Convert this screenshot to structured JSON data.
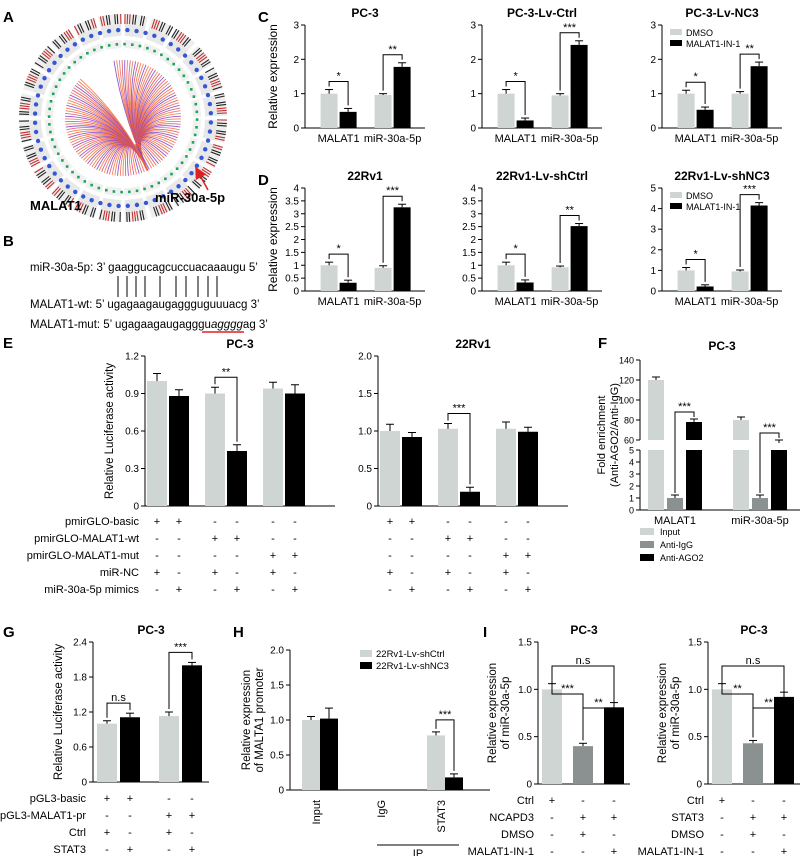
{
  "colors": {
    "light": "#cfd5d2",
    "dark": "#000000",
    "gray": "#8a9190",
    "red": "#e02020"
  },
  "panel_labels": {
    "A": "A",
    "B": "B",
    "C": "C",
    "D": "D",
    "E": "E",
    "F": "F",
    "G": "G",
    "H": "H",
    "I": "I"
  },
  "panel_a": {
    "label_malat1": "MALAT1",
    "label_mir": "miR-30a-5p"
  },
  "panel_b": {
    "line1": "miR-30a-5p: 3’ gaaggucagcuccuacaaaugu 5’",
    "line2": "MALAT1-wt: 5’ ugagaagaugaggguguuuacg 3’",
    "line3_prefix": "MALAT1-mut: 5’ ugagaagaugagggu",
    "line3_mut": "agggg",
    "line3_suffix": "ag 3’"
  },
  "common": {
    "ylabel_rel": "Relative expression",
    "legend_dmso": "DMSO",
    "legend_malat_in": "MALAT1-IN-1",
    "cat_malat1": "MALAT1",
    "cat_mir": "miR-30a-5p",
    "plus": "+",
    "minus": "-"
  },
  "chart_data": [
    {
      "id": "C1",
      "type": "bar",
      "title": "PC-3",
      "ylabel": "Relative expression",
      "ylim": [
        0,
        3
      ],
      "yticks": [
        "0",
        "1",
        "2",
        "3"
      ],
      "categories": [
        "MALAT1",
        "miR-30a-5p"
      ],
      "series": [
        {
          "name": "DMSO",
          "values": [
            1.0,
            0.96
          ],
          "errors": [
            0.12,
            0.04
          ]
        },
        {
          "name": "MALAT1-IN-1",
          "values": [
            0.47,
            1.78
          ],
          "errors": [
            0.1,
            0.12
          ]
        }
      ],
      "significance": [
        "*",
        "**"
      ]
    },
    {
      "id": "C2",
      "type": "bar",
      "title": "PC-3-Lv-Ctrl",
      "ylim": [
        0,
        3
      ],
      "yticks": [
        "0",
        "1",
        "2",
        "3"
      ],
      "categories": [
        "MALAT1",
        "miR-30a-5p"
      ],
      "series": [
        {
          "name": "DMSO",
          "values": [
            1.0,
            0.95
          ],
          "errors": [
            0.12,
            0.05
          ]
        },
        {
          "name": "MALAT1-IN-1",
          "values": [
            0.22,
            2.42
          ],
          "errors": [
            0.07,
            0.12
          ]
        }
      ],
      "significance": [
        "*",
        "***"
      ]
    },
    {
      "id": "C3",
      "type": "bar",
      "title": "PC-3-Lv-NC3",
      "ylim": [
        0,
        3
      ],
      "yticks": [
        "0",
        "1",
        "2",
        "3"
      ],
      "categories": [
        "MALAT1",
        "miR-30a-5p"
      ],
      "series": [
        {
          "name": "DMSO",
          "values": [
            1.0,
            1.0
          ],
          "errors": [
            0.1,
            0.06
          ]
        },
        {
          "name": "MALAT1-IN-1",
          "values": [
            0.53,
            1.8
          ],
          "errors": [
            0.08,
            0.12
          ]
        }
      ],
      "significance": [
        "*",
        "**"
      ],
      "legend": [
        "DMSO",
        "MALAT1-IN-1"
      ]
    },
    {
      "id": "D1",
      "type": "bar",
      "title": "22Rv1",
      "ylabel": "Relative expression",
      "ylim": [
        0,
        4
      ],
      "yticks": [
        "0",
        "0.5",
        "1",
        "1.5",
        "2",
        "2.5",
        "3",
        "3.5",
        "4"
      ],
      "categories": [
        "MALAT1",
        "miR-30a-5p"
      ],
      "series": [
        {
          "name": "DMSO",
          "values": [
            1.0,
            0.9
          ],
          "errors": [
            0.12,
            0.08
          ]
        },
        {
          "name": "MALAT1-IN-1",
          "values": [
            0.32,
            3.25
          ],
          "errors": [
            0.1,
            0.12
          ]
        }
      ],
      "significance": [
        "*",
        "***"
      ]
    },
    {
      "id": "D2",
      "type": "bar",
      "title": "22Rv1-Lv-shCtrl",
      "ylim": [
        0,
        4
      ],
      "yticks": [
        "0",
        "0.5",
        "1",
        "1.5",
        "2",
        "2.5",
        "3",
        "3.5",
        "4"
      ],
      "categories": [
        "MALAT1",
        "miR-30a-5p"
      ],
      "series": [
        {
          "name": "DMSO",
          "values": [
            1.0,
            0.92
          ],
          "errors": [
            0.12,
            0.05
          ]
        },
        {
          "name": "MALAT1-IN-1",
          "values": [
            0.33,
            2.52
          ],
          "errors": [
            0.1,
            0.1
          ]
        }
      ],
      "significance": [
        "*",
        "**"
      ]
    },
    {
      "id": "D3",
      "type": "bar",
      "title": "22Rv1-Lv-shNC3",
      "ylim": [
        0,
        5
      ],
      "yticks": [
        "0",
        "1",
        "2",
        "3",
        "4",
        "5"
      ],
      "categories": [
        "MALAT1",
        "miR-30a-5p"
      ],
      "series": [
        {
          "name": "DMSO",
          "values": [
            1.0,
            0.95
          ],
          "errors": [
            0.14,
            0.07
          ]
        },
        {
          "name": "MALAT1-IN-1",
          "values": [
            0.22,
            4.15
          ],
          "errors": [
            0.08,
            0.14
          ]
        }
      ],
      "significance": [
        "*",
        "***"
      ],
      "legend": [
        "DMSO",
        "MALAT1-IN-1"
      ]
    },
    {
      "id": "E1",
      "type": "bar",
      "title": "PC-3",
      "ylabel": "Relative Luciferase activity",
      "ylim": [
        0,
        1.2
      ],
      "yticks": [
        "0",
        "0.3",
        "0.6",
        "0.9",
        "1.2"
      ],
      "values": [
        1.0,
        0.88,
        0.9,
        0.44,
        0.94,
        0.9
      ],
      "errors": [
        0.06,
        0.05,
        0.05,
        0.05,
        0.05,
        0.07
      ],
      "colors": [
        "light",
        "dark",
        "light",
        "dark",
        "light",
        "dark"
      ],
      "significance": {
        "pair": [
          2,
          3
        ],
        "label": "**"
      },
      "rows": [
        {
          "label": "pmirGLO-basic",
          "signs": [
            "+",
            "+",
            "-",
            "-",
            "-",
            "-"
          ]
        },
        {
          "label": "pmirGLO-MALAT1-wt",
          "signs": [
            "-",
            "-",
            "+",
            "+",
            "-",
            "-"
          ]
        },
        {
          "label": "pmirGLO-MALAT1-mut",
          "signs": [
            "-",
            "-",
            "-",
            "-",
            "+",
            "+"
          ]
        },
        {
          "label": "miR-NC",
          "signs": [
            "+",
            "-",
            "+",
            "-",
            "+",
            "-"
          ]
        },
        {
          "label": "miR-30a-5p mimics",
          "signs": [
            "-",
            "+",
            "-",
            "+",
            "-",
            "+"
          ]
        }
      ]
    },
    {
      "id": "E2",
      "type": "bar",
      "title": "22Rv1",
      "ylim": [
        0,
        2.0
      ],
      "yticks": [
        "0",
        "0.5",
        "1.0",
        "1.5",
        "2.0"
      ],
      "values": [
        1.0,
        0.92,
        1.03,
        0.19,
        1.03,
        0.99
      ],
      "errors": [
        0.09,
        0.06,
        0.07,
        0.06,
        0.09,
        0.06
      ],
      "colors": [
        "light",
        "dark",
        "light",
        "dark",
        "light",
        "dark"
      ],
      "significance": {
        "pair": [
          2,
          3
        ],
        "label": "***"
      },
      "rows": [
        {
          "signs": [
            "+",
            "+",
            "-",
            "-",
            "-",
            "-"
          ]
        },
        {
          "signs": [
            "-",
            "-",
            "+",
            "+",
            "-",
            "-"
          ]
        },
        {
          "signs": [
            "-",
            "-",
            "-",
            "-",
            "+",
            "+"
          ]
        },
        {
          "signs": [
            "+",
            "-",
            "+",
            "-",
            "+",
            "-"
          ]
        },
        {
          "signs": [
            "-",
            "+",
            "-",
            "+",
            "-",
            "+"
          ]
        }
      ]
    },
    {
      "id": "F",
      "type": "bar",
      "title": "PC-3",
      "ylabel": "Fold enrichment\n(Anti-AGO2/Anti-IgG)",
      "yticks": [
        "0",
        "1",
        "2",
        "3",
        "4",
        "5",
        "60",
        "80",
        "100",
        "120",
        "140"
      ],
      "categories": [
        "MALAT1",
        "miR-30a-5p"
      ],
      "series": [
        {
          "name": "Input",
          "values": [
            120,
            80
          ]
        },
        {
          "name": "Anti-IgG",
          "values": [
            1,
            1
          ]
        },
        {
          "name": "Anti-AGO2",
          "values": [
            78,
            57
          ]
        }
      ],
      "significance": [
        "***",
        "***"
      ],
      "legend": [
        "Input",
        "Anti-IgG",
        "Anti-AGO2"
      ]
    },
    {
      "id": "G",
      "type": "bar",
      "title": "PC-3",
      "ylabel": "Relative Luciferase activity",
      "ylim": [
        0,
        2.4
      ],
      "yticks": [
        "0",
        "0.6",
        "1.2",
        "1.8",
        "2.4"
      ],
      "values": [
        1.0,
        1.11,
        1.13,
        2.0
      ],
      "errors": [
        0.05,
        0.07,
        0.07,
        0.05
      ],
      "colors": [
        "light",
        "dark",
        "light",
        "dark"
      ],
      "significance": [
        {
          "pair": [
            0,
            1
          ],
          "label": "n.s"
        },
        {
          "pair": [
            2,
            3
          ],
          "label": "***"
        }
      ],
      "rows": [
        {
          "label": "pGL3-basic",
          "signs": [
            "+",
            "+",
            "-",
            "-"
          ]
        },
        {
          "label": "pGL3-MALAT1-pr",
          "signs": [
            "-",
            "-",
            "+",
            "+"
          ]
        },
        {
          "label": "Ctrl",
          "signs": [
            "+",
            "-",
            "+",
            "-"
          ]
        },
        {
          "label": "STAT3",
          "signs": [
            "-",
            "+",
            "-",
            "+"
          ]
        }
      ]
    },
    {
      "id": "H",
      "type": "bar",
      "ylabel": "Relative expression\nof MALTA1 promoter",
      "ylim": [
        0,
        2.0
      ],
      "yticks": [
        "0",
        "0.5",
        "1.0",
        "1.5",
        "2.0"
      ],
      "categories": [
        "Input",
        "IgG",
        "STAT3"
      ],
      "group_label": "IP",
      "series": [
        {
          "name": "22Rv1-Lv-shCtrl",
          "values": [
            1.0,
            0,
            0.78
          ],
          "errors": [
            0.05,
            0,
            0.05
          ]
        },
        {
          "name": "22Rv1-Lv-shNC3",
          "values": [
            1.02,
            0,
            0.18
          ],
          "errors": [
            0.15,
            0,
            0.05
          ]
        }
      ],
      "significance": {
        "label": "***"
      },
      "legend": [
        "22Rv1-Lv-shCtrl",
        "22Rv1-Lv-shNC3"
      ]
    },
    {
      "id": "I1",
      "type": "bar",
      "title": "PC-3",
      "ylabel": "Relative expression\nof miR-30a-5p",
      "ylim": [
        0,
        1.5
      ],
      "yticks": [
        "0",
        "0.5",
        "1.0",
        "1.5"
      ],
      "values": [
        1.0,
        0.4,
        0.81
      ],
      "errors": [
        0.06,
        0.03,
        0.05
      ],
      "colors": [
        "light",
        "gray",
        "dark"
      ],
      "significance": [
        {
          "pair": [
            0,
            1
          ],
          "label": "***"
        },
        {
          "pair": [
            1,
            2
          ],
          "label": "**"
        },
        {
          "pair": [
            0,
            2
          ],
          "label": "n.s"
        }
      ],
      "rows": [
        {
          "label": "Ctrl",
          "signs": [
            "+",
            "-",
            "-"
          ]
        },
        {
          "label": "NCAPD3",
          "signs": [
            "-",
            "+",
            "+"
          ]
        },
        {
          "label": "DMSO",
          "signs": [
            "-",
            "+",
            "-"
          ]
        },
        {
          "label": "MALAT1-IN-1",
          "signs": [
            "-",
            "-",
            "+"
          ]
        }
      ]
    },
    {
      "id": "I2",
      "type": "bar",
      "title": "PC-3",
      "ylabel": "Relative expression\nof miR-30a-5p",
      "ylim": [
        0,
        1.5
      ],
      "yticks": [
        "0",
        "0.5",
        "1.0",
        "1.5"
      ],
      "values": [
        1.0,
        0.43,
        0.92
      ],
      "errors": [
        0.06,
        0.03,
        0.05
      ],
      "colors": [
        "light",
        "gray",
        "dark"
      ],
      "significance": [
        {
          "pair": [
            0,
            1
          ],
          "label": "**"
        },
        {
          "pair": [
            1,
            2
          ],
          "label": "**"
        },
        {
          "pair": [
            0,
            2
          ],
          "label": "n.s"
        }
      ],
      "rows": [
        {
          "label": "Ctrl",
          "signs": [
            "+",
            "-",
            "-"
          ]
        },
        {
          "label": "STAT3",
          "signs": [
            "-",
            "+",
            "+"
          ]
        },
        {
          "label": "DMSO",
          "signs": [
            "-",
            "+",
            "-"
          ]
        },
        {
          "label": "MALAT1-IN-1",
          "signs": [
            "-",
            "-",
            "+"
          ]
        }
      ]
    }
  ]
}
